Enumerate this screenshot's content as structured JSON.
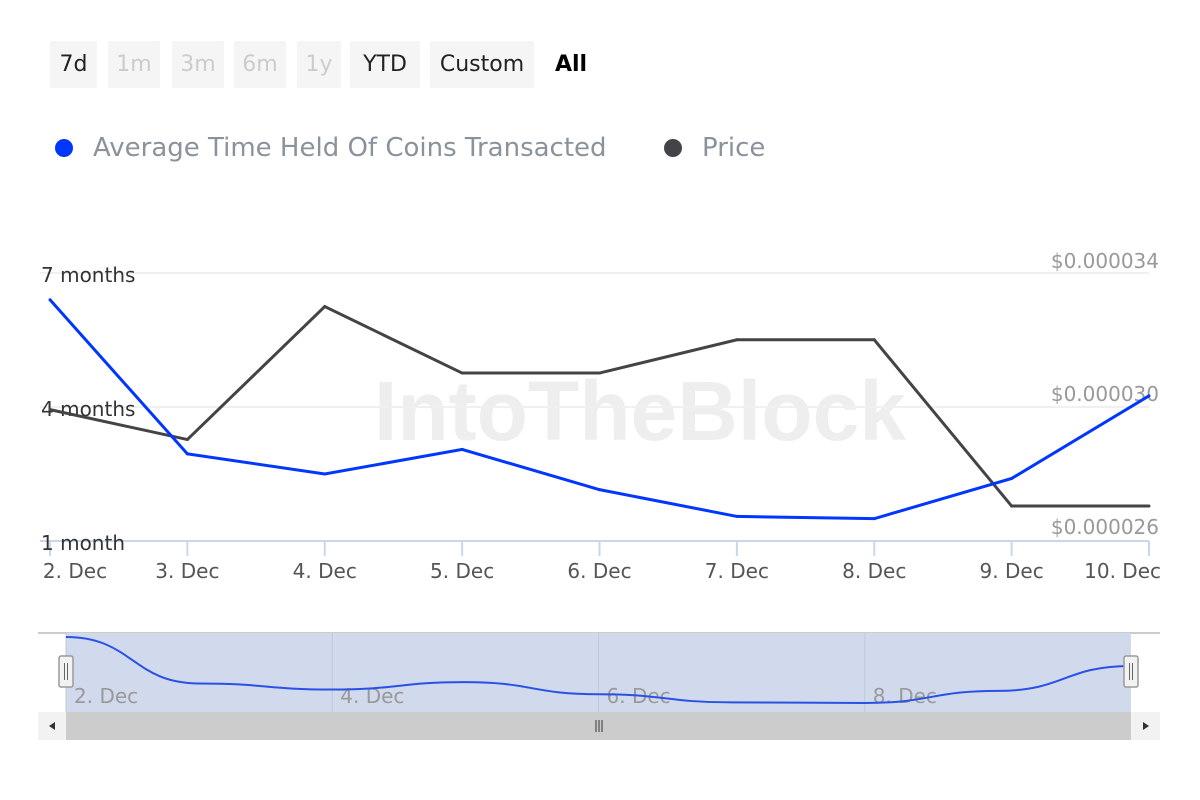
{
  "range_buttons": [
    {
      "label": "7d",
      "state": "enabled"
    },
    {
      "label": "1m",
      "state": "disabled"
    },
    {
      "label": "3m",
      "state": "disabled"
    },
    {
      "label": "6m",
      "state": "disabled"
    },
    {
      "label": "1y",
      "state": "disabled"
    },
    {
      "label": "YTD",
      "state": "enabled"
    },
    {
      "label": "Custom",
      "state": "enabled"
    },
    {
      "label": "All",
      "state": "selected"
    }
  ],
  "watermark": "IntoTheBlock",
  "chart_data": {
    "type": "line",
    "categories": [
      "2. Dec",
      "3. Dec",
      "4. Dec",
      "5. Dec",
      "6. Dec",
      "7. Dec",
      "8. Dec",
      "9. Dec",
      "10. Dec"
    ],
    "legend_position": "top-left",
    "grid": true,
    "series": [
      {
        "name": "Average Time Held Of Coins Transacted",
        "color": "#0037ff",
        "axis": "left",
        "unit": "months",
        "values": [
          6.4,
          2.95,
          2.5,
          3.05,
          2.15,
          1.55,
          1.5,
          2.4,
          4.25
        ]
      },
      {
        "name": "Price",
        "color": "#434348",
        "axis": "right",
        "unit": "USD",
        "values": [
          2.95e-05,
          2.86e-05,
          3.26e-05,
          3.06e-05,
          3.06e-05,
          3.16e-05,
          3.16e-05,
          2.66e-05,
          2.66e-05
        ]
      }
    ],
    "y_left": {
      "ticks": [
        {
          "value": 1,
          "label": "1 month"
        },
        {
          "value": 4,
          "label": "4 months"
        },
        {
          "value": 7,
          "label": "7 months"
        }
      ],
      "range": [
        1,
        7
      ]
    },
    "y_right": {
      "ticks": [
        {
          "value": 2.6e-05,
          "label": "$0.000026"
        },
        {
          "value": 3e-05,
          "label": "$0.000030"
        },
        {
          "value": 3.4e-05,
          "label": "$0.000034"
        }
      ],
      "range": [
        2.6e-05,
        3.4e-05
      ]
    },
    "navigator": {
      "labels": [
        "2. Dec",
        "4. Dec",
        "6. Dec",
        "8. Dec"
      ]
    }
  }
}
